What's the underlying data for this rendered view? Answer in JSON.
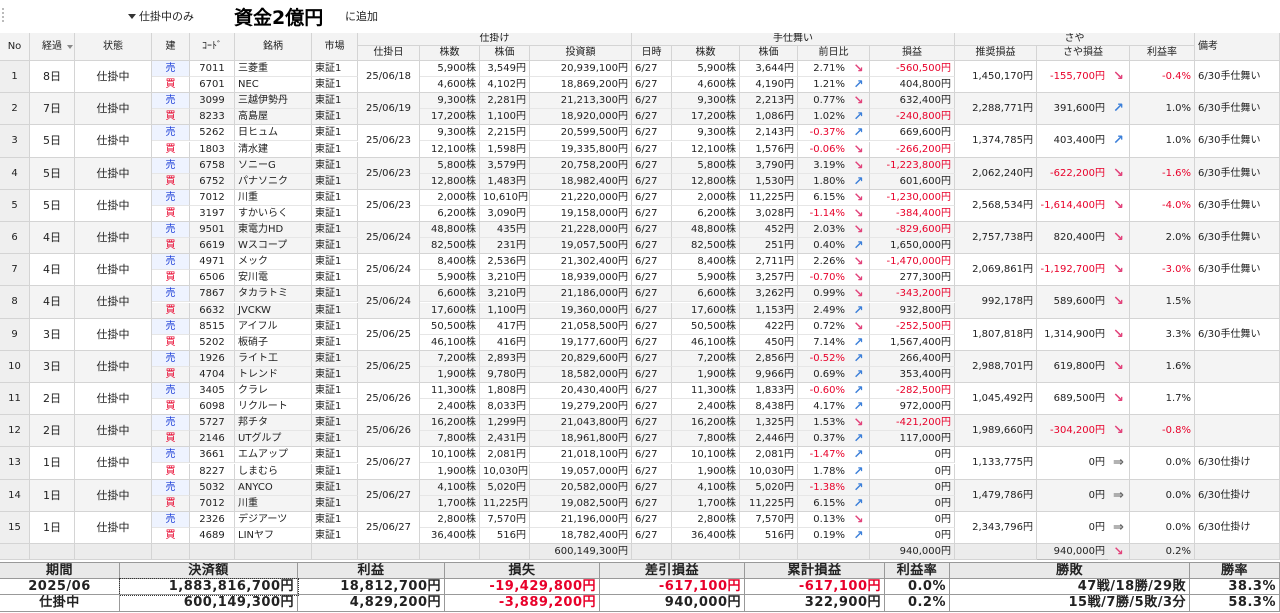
{
  "toolbar": {
    "filter": "仕掛中のみ",
    "title": "資金2億円",
    "add": "に追加"
  },
  "table": {
    "headers": [
      "No",
      "経過",
      "状態",
      "建",
      "ｺｰﾄﾞ",
      "銘柄",
      "市場",
      "仕掛日",
      "株数",
      "株価",
      "投資額",
      "日時",
      "株数",
      "株価",
      "前日比",
      "損益",
      "推奨損益",
      "さや損益",
      "利益率",
      "備考"
    ],
    "header_groups": [
      "仕掛け",
      "手仕舞い",
      "さや"
    ],
    "rows": [
      {
        "no": "1",
        "elapsed": "8日",
        "status": "仕掛中",
        "entry_date": "25/06/18",
        "legs": [
          {
            "side": "売",
            "code": "7011",
            "name": "三菱重",
            "market": "東証1",
            "shares": "5,900株",
            "price": "3,549円",
            "amount": "20,939,100円",
            "date": "6/27",
            "exit_shares": "5,900株",
            "exit_price": "3,644円",
            "change": "2.71%",
            "change_trend": "↘",
            "pnl": "-560,500円"
          },
          {
            "side": "買",
            "code": "6701",
            "name": "NEC",
            "market": "東証1",
            "shares": "4,600株",
            "price": "4,102円",
            "amount": "18,869,200円",
            "date": "6/27",
            "exit_shares": "4,600株",
            "exit_price": "4,190円",
            "change": "1.21%",
            "change_trend": "↗",
            "pnl": "404,800円"
          }
        ],
        "recommended": "1,450,170円",
        "spread_pnl": "-155,700円",
        "spread_trend": "↘",
        "rate": "-0.4%",
        "note": "6/30手仕舞い"
      },
      {
        "no": "2",
        "elapsed": "7日",
        "status": "仕掛中",
        "entry_date": "25/06/19",
        "legs": [
          {
            "side": "売",
            "code": "3099",
            "name": "三越伊勢丹",
            "market": "東証1",
            "shares": "9,300株",
            "price": "2,281円",
            "amount": "21,213,300円",
            "date": "6/27",
            "exit_shares": "9,300株",
            "exit_price": "2,213円",
            "change": "0.77%",
            "change_trend": "↘",
            "pnl": "632,400円"
          },
          {
            "side": "買",
            "code": "8233",
            "name": "高島屋",
            "market": "東証1",
            "shares": "17,200株",
            "price": "1,100円",
            "amount": "18,920,000円",
            "date": "6/27",
            "exit_shares": "17,200株",
            "exit_price": "1,086円",
            "change": "1.02%",
            "change_trend": "↗",
            "pnl": "-240,800円"
          }
        ],
        "recommended": "2,288,771円",
        "spread_pnl": "391,600円",
        "spread_trend": "↗",
        "rate": "1.0%",
        "note": "6/30手仕舞い"
      },
      {
        "no": "3",
        "elapsed": "5日",
        "status": "仕掛中",
        "entry_date": "25/06/23",
        "legs": [
          {
            "side": "売",
            "code": "5262",
            "name": "日ヒュム",
            "market": "東証1",
            "shares": "9,300株",
            "price": "2,215円",
            "amount": "20,599,500円",
            "date": "6/27",
            "exit_shares": "9,300株",
            "exit_price": "2,143円",
            "change": "-0.37%",
            "change_trend": "↗",
            "pnl": "669,600円"
          },
          {
            "side": "買",
            "code": "1803",
            "name": "清水建",
            "market": "東証1",
            "shares": "12,100株",
            "price": "1,598円",
            "amount": "19,335,800円",
            "date": "6/27",
            "exit_shares": "12,100株",
            "exit_price": "1,576円",
            "change": "-0.06%",
            "change_trend": "↘",
            "pnl": "-266,200円"
          }
        ],
        "recommended": "1,374,785円",
        "spread_pnl": "403,400円",
        "spread_trend": "↗",
        "rate": "1.0%",
        "note": "6/30手仕舞い"
      },
      {
        "no": "4",
        "elapsed": "5日",
        "status": "仕掛中",
        "entry_date": "25/06/23",
        "legs": [
          {
            "side": "売",
            "code": "6758",
            "name": "ソニーG",
            "market": "東証1",
            "shares": "5,800株",
            "price": "3,579円",
            "amount": "20,758,200円",
            "date": "6/27",
            "exit_shares": "5,800株",
            "exit_price": "3,790円",
            "change": "3.19%",
            "change_trend": "↘",
            "pnl": "-1,223,800円"
          },
          {
            "side": "買",
            "code": "6752",
            "name": "パナソニク",
            "market": "東証1",
            "shares": "12,800株",
            "price": "1,483円",
            "amount": "18,982,400円",
            "date": "6/27",
            "exit_shares": "12,800株",
            "exit_price": "1,530円",
            "change": "1.80%",
            "change_trend": "↗",
            "pnl": "601,600円"
          }
        ],
        "recommended": "2,062,240円",
        "spread_pnl": "-622,200円",
        "spread_trend": "↘",
        "rate": "-1.6%",
        "note": "6/30手仕舞い"
      },
      {
        "no": "5",
        "elapsed": "5日",
        "status": "仕掛中",
        "entry_date": "25/06/23",
        "legs": [
          {
            "side": "売",
            "code": "7012",
            "name": "川重",
            "market": "東証1",
            "shares": "2,000株",
            "price": "10,610円",
            "amount": "21,220,000円",
            "date": "6/27",
            "exit_shares": "2,000株",
            "exit_price": "11,225円",
            "change": "6.15%",
            "change_trend": "↘",
            "pnl": "-1,230,000円"
          },
          {
            "side": "買",
            "code": "3197",
            "name": "すかいらく",
            "market": "東証1",
            "shares": "6,200株",
            "price": "3,090円",
            "amount": "19,158,000円",
            "date": "6/27",
            "exit_shares": "6,200株",
            "exit_price": "3,028円",
            "change": "-1.14%",
            "change_trend": "↘",
            "pnl": "-384,400円"
          }
        ],
        "recommended": "2,568,534円",
        "spread_pnl": "-1,614,400円",
        "spread_trend": "↘",
        "rate": "-4.0%",
        "note": "6/30手仕舞い"
      },
      {
        "no": "6",
        "elapsed": "4日",
        "status": "仕掛中",
        "entry_date": "25/06/24",
        "legs": [
          {
            "side": "売",
            "code": "9501",
            "name": "東電力HD",
            "market": "東証1",
            "shares": "48,800株",
            "price": "435円",
            "amount": "21,228,000円",
            "date": "6/27",
            "exit_shares": "48,800株",
            "exit_price": "452円",
            "change": "2.03%",
            "change_trend": "↘",
            "pnl": "-829,600円"
          },
          {
            "side": "買",
            "code": "6619",
            "name": "Wスコープ",
            "market": "東証1",
            "shares": "82,500株",
            "price": "231円",
            "amount": "19,057,500円",
            "date": "6/27",
            "exit_shares": "82,500株",
            "exit_price": "251円",
            "change": "0.40%",
            "change_trend": "↗",
            "pnl": "1,650,000円"
          }
        ],
        "recommended": "2,757,738円",
        "spread_pnl": "820,400円",
        "spread_trend": "↘",
        "rate": "2.0%",
        "note": "6/30手仕舞い"
      },
      {
        "no": "7",
        "elapsed": "4日",
        "status": "仕掛中",
        "entry_date": "25/06/24",
        "legs": [
          {
            "side": "売",
            "code": "4971",
            "name": "メック",
            "market": "東証1",
            "shares": "8,400株",
            "price": "2,536円",
            "amount": "21,302,400円",
            "date": "6/27",
            "exit_shares": "8,400株",
            "exit_price": "2,711円",
            "change": "2.26%",
            "change_trend": "↘",
            "pnl": "-1,470,000円"
          },
          {
            "side": "買",
            "code": "6506",
            "name": "安川電",
            "market": "東証1",
            "shares": "5,900株",
            "price": "3,210円",
            "amount": "18,939,000円",
            "date": "6/27",
            "exit_shares": "5,900株",
            "exit_price": "3,257円",
            "change": "-0.70%",
            "change_trend": "↘",
            "pnl": "277,300円"
          }
        ],
        "recommended": "2,069,861円",
        "spread_pnl": "-1,192,700円",
        "spread_trend": "↘",
        "rate": "-3.0%",
        "note": "6/30手仕舞い"
      },
      {
        "no": "8",
        "elapsed": "4日",
        "status": "仕掛中",
        "entry_date": "25/06/24",
        "legs": [
          {
            "side": "売",
            "code": "7867",
            "name": "タカラトミ",
            "market": "東証1",
            "shares": "6,600株",
            "price": "3,210円",
            "amount": "21,186,000円",
            "date": "6/27",
            "exit_shares": "6,600株",
            "exit_price": "3,262円",
            "change": "0.99%",
            "change_trend": "↘",
            "pnl": "-343,200円"
          },
          {
            "side": "買",
            "code": "6632",
            "name": "JVCKW",
            "market": "東証1",
            "shares": "17,600株",
            "price": "1,100円",
            "amount": "19,360,000円",
            "date": "6/27",
            "exit_shares": "17,600株",
            "exit_price": "1,153円",
            "change": "2.49%",
            "change_trend": "↗",
            "pnl": "932,800円"
          }
        ],
        "recommended": "992,178円",
        "spread_pnl": "589,600円",
        "spread_trend": "↘",
        "rate": "1.5%"
      },
      {
        "no": "9",
        "elapsed": "3日",
        "status": "仕掛中",
        "entry_date": "25/06/25",
        "legs": [
          {
            "side": "売",
            "code": "8515",
            "name": "アイフル",
            "market": "東証1",
            "shares": "50,500株",
            "price": "417円",
            "amount": "21,058,500円",
            "date": "6/27",
            "exit_shares": "50,500株",
            "exit_price": "422円",
            "change": "0.72%",
            "change_trend": "↘",
            "pnl": "-252,500円"
          },
          {
            "side": "買",
            "code": "5202",
            "name": "板硝子",
            "market": "東証1",
            "shares": "46,100株",
            "price": "416円",
            "amount": "19,177,600円",
            "date": "6/27",
            "exit_shares": "46,100株",
            "exit_price": "450円",
            "change": "7.14%",
            "change_trend": "↗",
            "pnl": "1,567,400円"
          }
        ],
        "recommended": "1,807,818円",
        "spread_pnl": "1,314,900円",
        "spread_trend": "↘",
        "rate": "3.3%",
        "note": "6/30手仕舞い"
      },
      {
        "no": "10",
        "elapsed": "3日",
        "status": "仕掛中",
        "entry_date": "25/06/25",
        "legs": [
          {
            "side": "売",
            "code": "1926",
            "name": "ライト工",
            "market": "東証1",
            "shares": "7,200株",
            "price": "2,893円",
            "amount": "20,829,600円",
            "date": "6/27",
            "exit_shares": "7,200株",
            "exit_price": "2,856円",
            "change": "-0.52%",
            "change_trend": "↗",
            "pnl": "266,400円"
          },
          {
            "side": "買",
            "code": "4704",
            "name": "トレンド",
            "market": "東証1",
            "shares": "1,900株",
            "price": "9,780円",
            "amount": "18,582,000円",
            "date": "6/27",
            "exit_shares": "1,900株",
            "exit_price": "9,966円",
            "change": "0.69%",
            "change_trend": "↗",
            "pnl": "353,400円"
          }
        ],
        "recommended": "2,988,701円",
        "spread_pnl": "619,800円",
        "spread_trend": "↘",
        "rate": "1.6%"
      },
      {
        "no": "11",
        "elapsed": "2日",
        "status": "仕掛中",
        "entry_date": "25/06/26",
        "legs": [
          {
            "side": "売",
            "code": "3405",
            "name": "クラレ",
            "market": "東証1",
            "shares": "11,300株",
            "price": "1,808円",
            "amount": "20,430,400円",
            "date": "6/27",
            "exit_shares": "11,300株",
            "exit_price": "1,833円",
            "change": "-0.60%",
            "change_trend": "↗",
            "pnl": "-282,500円"
          },
          {
            "side": "買",
            "code": "6098",
            "name": "リクルート",
            "market": "東証1",
            "shares": "2,400株",
            "price": "8,033円",
            "amount": "19,279,200円",
            "date": "6/27",
            "exit_shares": "2,400株",
            "exit_price": "8,438円",
            "change": "4.17%",
            "change_trend": "↗",
            "pnl": "972,000円"
          }
        ],
        "recommended": "1,045,492円",
        "spread_pnl": "689,500円",
        "spread_trend": "↘",
        "rate": "1.7%"
      },
      {
        "no": "12",
        "elapsed": "2日",
        "status": "仕掛中",
        "entry_date": "25/06/26",
        "legs": [
          {
            "side": "売",
            "code": "5727",
            "name": "邦チタ",
            "market": "東証1",
            "shares": "16,200株",
            "price": "1,299円",
            "amount": "21,043,800円",
            "date": "6/27",
            "exit_shares": "16,200株",
            "exit_price": "1,325円",
            "change": "1.53%",
            "change_trend": "↘",
            "pnl": "-421,200円"
          },
          {
            "side": "買",
            "code": "2146",
            "name": "UTグルプ",
            "market": "東証1",
            "shares": "7,800株",
            "price": "2,431円",
            "amount": "18,961,800円",
            "date": "6/27",
            "exit_shares": "7,800株",
            "exit_price": "2,446円",
            "change": "0.37%",
            "change_trend": "↗",
            "pnl": "117,000円"
          }
        ],
        "recommended": "1,989,660円",
        "spread_pnl": "-304,200円",
        "spread_trend": "↘",
        "rate": "-0.8%"
      },
      {
        "no": "13",
        "elapsed": "1日",
        "status": "仕掛中",
        "entry_date": "25/06/27",
        "legs": [
          {
            "side": "売",
            "code": "3661",
            "name": "エムアップ",
            "market": "東証1",
            "shares": "10,100株",
            "price": "2,081円",
            "amount": "21,018,100円",
            "date": "6/27",
            "exit_shares": "10,100株",
            "exit_price": "2,081円",
            "change": "-1.47%",
            "change_trend": "↗",
            "pnl": "0円"
          },
          {
            "side": "買",
            "code": "8227",
            "name": "しまむら",
            "market": "東証1",
            "shares": "1,900株",
            "price": "10,030円",
            "amount": "19,057,000円",
            "date": "6/27",
            "exit_shares": "1,900株",
            "exit_price": "10,030円",
            "change": "1.78%",
            "change_trend": "↗",
            "pnl": "0円"
          }
        ],
        "recommended": "1,133,775円",
        "spread_pnl": "0円",
        "spread_trend": "⇒",
        "rate": "0.0%",
        "note": "6/30仕掛け"
      },
      {
        "no": "14",
        "elapsed": "1日",
        "status": "仕掛中",
        "entry_date": "25/06/27",
        "legs": [
          {
            "side": "売",
            "code": "5032",
            "name": "ANYCO",
            "market": "東証1",
            "shares": "4,100株",
            "price": "5,020円",
            "amount": "20,582,000円",
            "date": "6/27",
            "exit_shares": "4,100株",
            "exit_price": "5,020円",
            "change": "-1.38%",
            "change_trend": "↗",
            "pnl": "0円"
          },
          {
            "side": "買",
            "code": "7012",
            "name": "川重",
            "market": "東証1",
            "shares": "1,700株",
            "price": "11,225円",
            "amount": "19,082,500円",
            "date": "6/27",
            "exit_shares": "1,700株",
            "exit_price": "11,225円",
            "change": "6.15%",
            "change_trend": "↗",
            "pnl": "0円"
          }
        ],
        "recommended": "1,479,786円",
        "spread_pnl": "0円",
        "spread_trend": "⇒",
        "rate": "0.0%",
        "note": "6/30仕掛け"
      },
      {
        "no": "15",
        "elapsed": "1日",
        "status": "仕掛中",
        "entry_date": "25/06/27",
        "legs": [
          {
            "side": "売",
            "code": "2326",
            "name": "デジアーツ",
            "market": "東証1",
            "shares": "2,800株",
            "price": "7,570円",
            "amount": "21,196,000円",
            "date": "6/27",
            "exit_shares": "2,800株",
            "exit_price": "7,570円",
            "change": "0.13%",
            "change_trend": "↘",
            "pnl": "0円"
          },
          {
            "side": "買",
            "code": "4689",
            "name": "LINヤフ",
            "market": "東証1",
            "shares": "36,400株",
            "price": "516円",
            "amount": "18,782,400円",
            "date": "6/27",
            "exit_shares": "36,400株",
            "exit_price": "516円",
            "change": "0.19%",
            "change_trend": "↗",
            "pnl": "0円"
          }
        ],
        "recommended": "2,343,796円",
        "spread_pnl": "0円",
        "spread_trend": "⇒",
        "rate": "0.0%",
        "note": "6/30仕掛け"
      }
    ],
    "totals": {
      "amount": "600,149,300円",
      "pnl": "940,000円",
      "spread_pnl": "940,000円",
      "spread_trend": "↘",
      "rate": "0.2%"
    }
  },
  "summary": {
    "headers": [
      "期間",
      "決済額",
      "利益",
      "損失",
      "差引損益",
      "累計損益",
      "利益率",
      "勝敗",
      "勝率"
    ],
    "rows": [
      [
        "2025/06",
        "1,883,816,700円",
        "18,812,700円",
        "-19,429,800円",
        "-617,100円",
        "-617,100円",
        "0.0%",
        "47戦/18勝/29敗",
        "38.3%"
      ],
      [
        "仕掛中",
        "600,149,300円",
        "4,829,200円",
        "-3,889,200円",
        "940,000円",
        "322,900円",
        "0.2%",
        "15戦/7勝/5敗/3分",
        "58.3%"
      ]
    ]
  }
}
